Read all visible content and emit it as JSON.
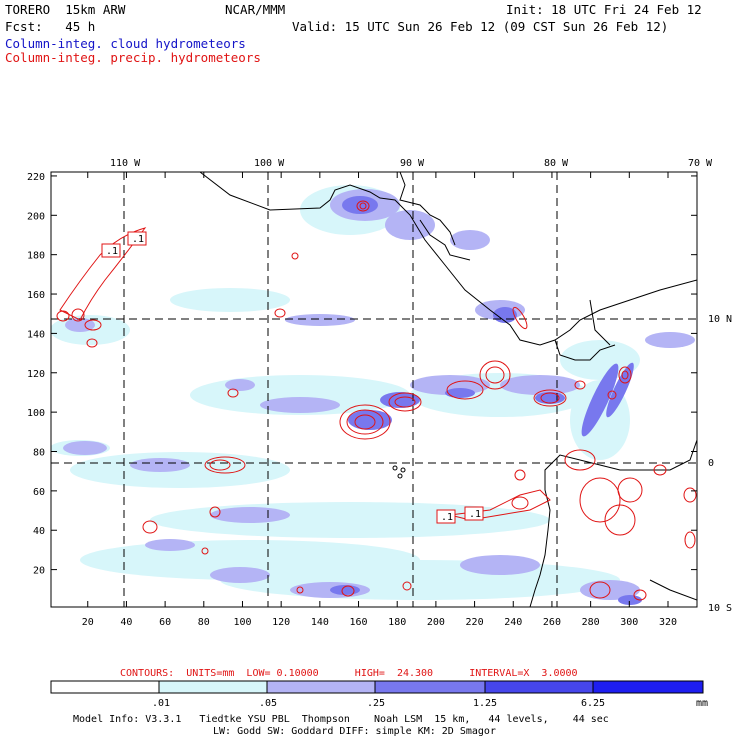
{
  "header": {
    "model": "TORERO  15km ARW",
    "org": "NCAR/MMM",
    "init": "Init: 18 UTC Fri 24 Feb 12",
    "fcst": "Fcst:   45 h",
    "valid": "Valid: 15 UTC Sun 26 Feb 12 (09 CST Sun 26 Feb 12)",
    "field1": "Column-integ. cloud hydrometeors",
    "field2": "Column-integ. precip. hydrometeors"
  },
  "map": {
    "lon_labels": [
      "110 W",
      "100 W",
      "90 W",
      "80 W",
      "70 W"
    ],
    "lat_labels": [
      "10 N",
      "0",
      "10 S"
    ],
    "x_ticks": [
      "20",
      "40",
      "60",
      "80",
      "100",
      "120",
      "140",
      "160",
      "180",
      "200",
      "220",
      "240",
      "260",
      "280",
      "300",
      "320"
    ],
    "y_ticks": [
      "220",
      "200",
      "180",
      "160",
      "140",
      "120",
      "100",
      "80",
      "60",
      "40",
      "20"
    ],
    "x_range": [
      1,
      335
    ],
    "y_range": [
      1,
      222
    ],
    "contour_labels": [
      ".1",
      ".1",
      ".1",
      ".1"
    ]
  },
  "contour_info": {
    "line": "CONTOURS:  UNITS=mm  LOW= 0.10000      HIGH=  24.300      INTERVAL=X  3.0000"
  },
  "colorbar": {
    "labels": [
      ".01",
      ".05",
      ".25",
      "1.25",
      "6.25"
    ],
    "unit": "mm",
    "colors": [
      "#ffffff",
      "#d7f6fa",
      "#b4b4f5",
      "#7878ee",
      "#4646eb",
      "#1e1ef0"
    ]
  },
  "footer": {
    "line1": "Model Info: V3.3.1   Tiedtke YSU PBL  Thompson    Noah LSM  15 km,   44 levels,    44 sec",
    "line2": "LW: Godd SW: Goddard DIFF: simple KM: 2D Smagor"
  }
}
